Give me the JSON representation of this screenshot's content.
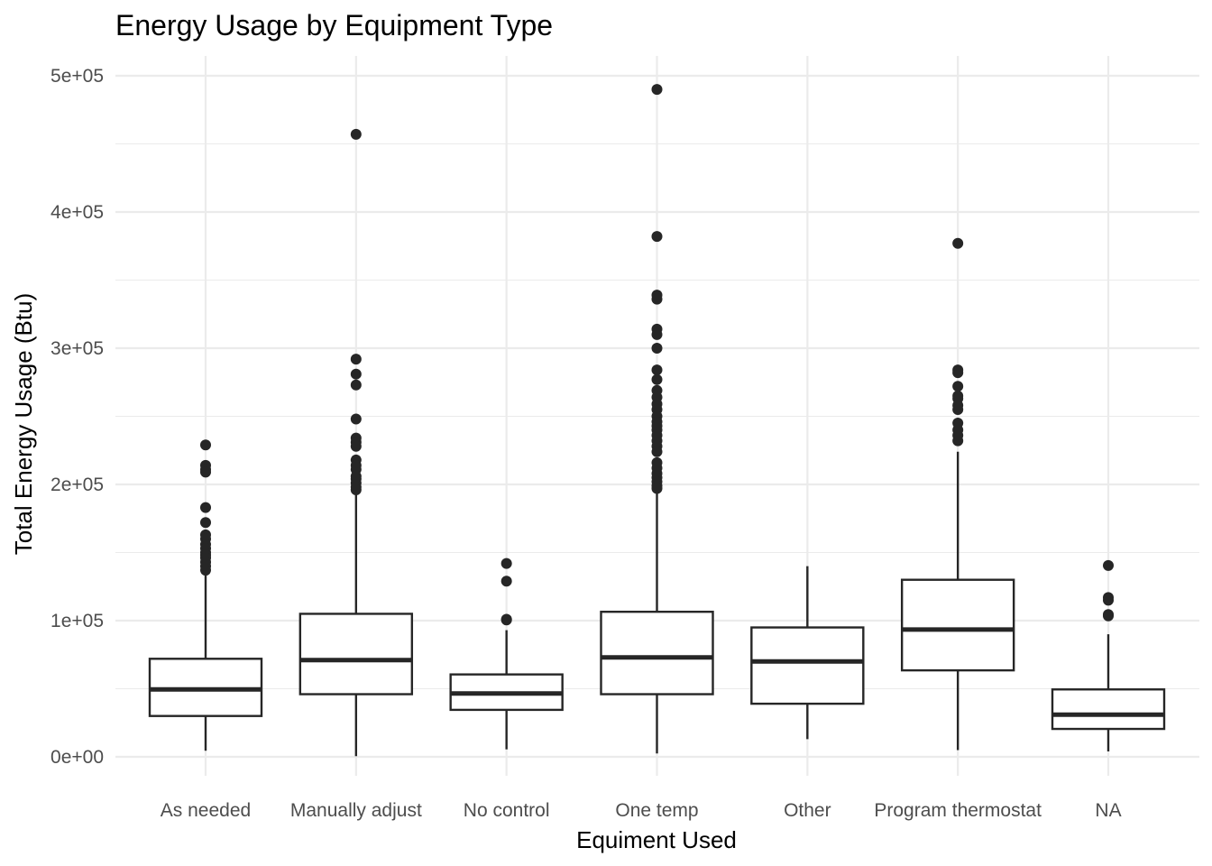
{
  "chart_data": {
    "type": "boxplot",
    "title": "Energy Usage by Equipment Type",
    "xlabel": "Equiment Used",
    "ylabel": "Total Energy Usage (Btu)",
    "ylim": [
      -20000,
      515000
    ],
    "y_ticks": [
      0,
      100000,
      200000,
      300000,
      400000,
      500000
    ],
    "y_tick_labels": [
      "0e+00",
      "1e+05",
      "2e+05",
      "3e+05",
      "4e+05",
      "5e+05"
    ],
    "grid": true,
    "categories": [
      "As needed",
      "Manually adjust",
      "No control",
      "One temp",
      "Other",
      "Program thermostat",
      "NA"
    ],
    "boxes": [
      {
        "category": "As needed",
        "whisker_low": 4500,
        "q1": 30000,
        "median": 49500,
        "q3": 72000,
        "whisker_high": 135000,
        "outliers": [
          229000,
          214000,
          211000,
          209000,
          183000,
          172000,
          163000,
          160000,
          156000,
          153000,
          150000,
          148000,
          146000,
          143000,
          140000,
          137000
        ]
      },
      {
        "category": "Manually adjust",
        "whisker_low": 500,
        "q1": 46000,
        "median": 71000,
        "q3": 105000,
        "whisker_high": 195000,
        "outliers": [
          457000,
          292000,
          281000,
          273000,
          248000,
          234000,
          231000,
          228000,
          218000,
          214000,
          211000,
          206000,
          204000,
          201000,
          198000,
          196000
        ]
      },
      {
        "category": "No control",
        "whisker_low": 5500,
        "q1": 34500,
        "median": 46500,
        "q3": 60500,
        "whisker_high": 93000,
        "outliers": [
          142000,
          129000,
          101000,
          100500
        ]
      },
      {
        "category": "One temp",
        "whisker_low": 2500,
        "q1": 46000,
        "median": 73000,
        "q3": 106500,
        "whisker_high": 196000,
        "outliers": [
          490000,
          382000,
          339000,
          336000,
          314000,
          310000,
          300000,
          284000,
          277000,
          269000,
          264000,
          259000,
          255000,
          250000,
          246000,
          243000,
          240000,
          236000,
          232000,
          228000,
          224000,
          216000,
          212000,
          208000,
          205000,
          202000,
          199000,
          197000
        ]
      },
      {
        "category": "Other",
        "whisker_low": 13000,
        "q1": 39000,
        "median": 70000,
        "q3": 95000,
        "whisker_high": 140000,
        "outliers": []
      },
      {
        "category": "Program thermostat",
        "whisker_low": 5000,
        "q1": 63500,
        "median": 93500,
        "q3": 130000,
        "whisker_high": 224000,
        "outliers": [
          377000,
          284000,
          282000,
          272000,
          265000,
          263000,
          258000,
          255000,
          245000,
          240000,
          236000,
          232000
        ]
      },
      {
        "category": "NA",
        "whisker_low": 4000,
        "q1": 20500,
        "median": 31000,
        "q3": 49500,
        "whisker_high": 90000,
        "outliers": [
          140500,
          117000,
          115000,
          104500,
          103500
        ]
      }
    ]
  }
}
